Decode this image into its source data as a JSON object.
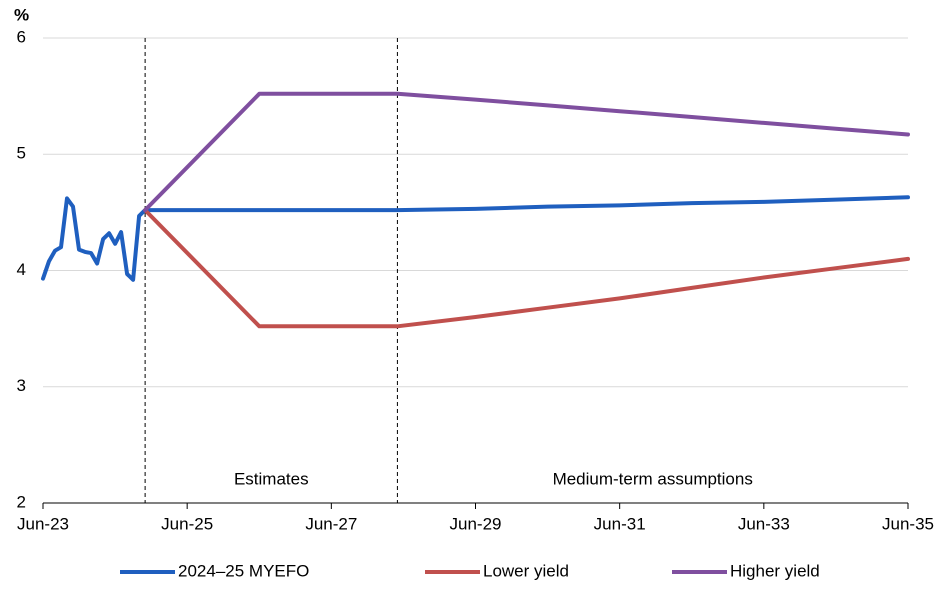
{
  "chart_data": {
    "type": "line",
    "y_unit": "%",
    "x": [
      "Jun-23",
      "Jul-23",
      "Aug-23",
      "Sep-23",
      "Oct-23",
      "Nov-23",
      "Dec-23",
      "Jan-24",
      "Feb-24",
      "Mar-24",
      "Apr-24",
      "May-24",
      "Jun-24",
      "Jul-24",
      "Aug-24",
      "Sep-24",
      "Oct-24",
      "Nov-24",
      "Jun-26",
      "May-28",
      "Jun-29",
      "Jun-30",
      "Jun-31",
      "Jun-32",
      "Jun-33",
      "Jun-34",
      "Jun-35"
    ],
    "series": [
      {
        "name": "2024–25 MYEFO",
        "color": "#1f5fbf",
        "values": [
          3.93,
          4.08,
          4.17,
          4.2,
          4.62,
          4.55,
          4.18,
          4.16,
          4.15,
          4.06,
          4.27,
          4.32,
          4.23,
          4.33,
          3.97,
          3.92,
          4.47,
          4.52,
          4.52,
          4.52,
          4.53,
          4.55,
          4.56,
          4.58,
          4.59,
          4.61,
          4.63
        ]
      },
      {
        "name": "Lower yield",
        "color": "#c0504d",
        "values": [
          null,
          null,
          null,
          null,
          null,
          null,
          null,
          null,
          null,
          null,
          null,
          null,
          null,
          null,
          null,
          null,
          null,
          4.52,
          3.52,
          3.52,
          3.6,
          3.68,
          3.76,
          3.85,
          3.94,
          4.02,
          4.1
        ]
      },
      {
        "name": "Higher yield",
        "color": "#7f4f9f",
        "values": [
          null,
          null,
          null,
          null,
          null,
          null,
          null,
          null,
          null,
          null,
          null,
          null,
          null,
          null,
          null,
          null,
          null,
          4.52,
          5.52,
          5.52,
          5.47,
          5.42,
          5.37,
          5.32,
          5.27,
          5.22,
          5.17
        ]
      }
    ],
    "regions": [
      {
        "label": "Estimates",
        "start": "Nov-24",
        "end": "May-28"
      },
      {
        "label": "Medium-term assumptions",
        "start": "May-28",
        "end": "Jun-35"
      }
    ],
    "xlim": [
      "Jun-23",
      "Jun-35"
    ],
    "xticks": [
      "Jun-23",
      "Jun-25",
      "Jun-27",
      "Jun-29",
      "Jun-31",
      "Jun-33",
      "Jun-35"
    ],
    "ylim": [
      2,
      6
    ],
    "yticks": [
      2,
      3,
      4,
      5,
      6
    ],
    "grid": true,
    "legend": "bottom"
  }
}
